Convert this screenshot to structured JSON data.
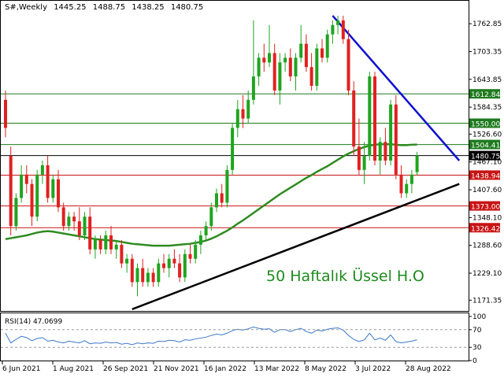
{
  "header": {
    "symbol": "S#,Weekly",
    "open": "1445.25",
    "high": "1488.75",
    "low": "1438.25",
    "close": "1480.75"
  },
  "rsi_label": "RSI(14) 47.0699",
  "annotation": "50 Haftalık Üssel H.O",
  "colors": {
    "bull": "#1fa41f",
    "bear": "#e02020",
    "ema": "#2e8b20",
    "trend_down": "#1010d0",
    "trend_up": "#000000",
    "support_level": "#c81414",
    "resistance_level": "#1f7a1f",
    "rsi_line": "#3c78c8",
    "annotation": "#1f8a1f"
  },
  "chart_data": [
    {
      "type": "candlestick",
      "timeframe": "Weekly",
      "x_tick_labels": [
        "6 Jun 2021",
        "1 Aug 2021",
        "26 Sep 2021",
        "21 Nov 2021",
        "16 Jan 2022",
        "13 Mar 2022",
        "8 May 2022",
        "3 Jul 2022",
        "28 Aug 2022"
      ],
      "y_tick_labels": [
        "1762.85",
        "1703.35",
        "1643.85",
        "1584.35",
        "1526.60",
        "1467.10",
        "1407.60",
        "1348.10",
        "1288.60",
        "1229.10",
        "1171.35"
      ],
      "ylim": [
        1150,
        1790
      ],
      "candles": [
        {
          "o": 1600,
          "h": 1620,
          "l": 1520,
          "c": 1540
        },
        {
          "o": 1480,
          "h": 1500,
          "l": 1310,
          "c": 1330
        },
        {
          "o": 1330,
          "h": 1400,
          "l": 1320,
          "c": 1390
        },
        {
          "o": 1390,
          "h": 1460,
          "l": 1380,
          "c": 1440
        },
        {
          "o": 1440,
          "h": 1460,
          "l": 1400,
          "c": 1420
        },
        {
          "o": 1420,
          "h": 1430,
          "l": 1330,
          "c": 1350
        },
        {
          "o": 1350,
          "h": 1450,
          "l": 1340,
          "c": 1440
        },
        {
          "o": 1440,
          "h": 1470,
          "l": 1420,
          "c": 1460
        },
        {
          "o": 1460,
          "h": 1480,
          "l": 1380,
          "c": 1390
        },
        {
          "o": 1390,
          "h": 1440,
          "l": 1380,
          "c": 1430
        },
        {
          "o": 1430,
          "h": 1450,
          "l": 1360,
          "c": 1370
        },
        {
          "o": 1370,
          "h": 1380,
          "l": 1320,
          "c": 1330
        },
        {
          "o": 1330,
          "h": 1360,
          "l": 1320,
          "c": 1350
        },
        {
          "o": 1350,
          "h": 1360,
          "l": 1320,
          "c": 1340
        },
        {
          "o": 1340,
          "h": 1370,
          "l": 1300,
          "c": 1310
        },
        {
          "o": 1310,
          "h": 1360,
          "l": 1300,
          "c": 1350
        },
        {
          "o": 1350,
          "h": 1370,
          "l": 1270,
          "c": 1280
        },
        {
          "o": 1280,
          "h": 1310,
          "l": 1260,
          "c": 1300
        },
        {
          "o": 1300,
          "h": 1310,
          "l": 1270,
          "c": 1280
        },
        {
          "o": 1280,
          "h": 1320,
          "l": 1270,
          "c": 1310
        },
        {
          "o": 1310,
          "h": 1330,
          "l": 1270,
          "c": 1280
        },
        {
          "o": 1280,
          "h": 1300,
          "l": 1260,
          "c": 1290
        },
        {
          "o": 1290,
          "h": 1300,
          "l": 1240,
          "c": 1250
        },
        {
          "o": 1250,
          "h": 1270,
          "l": 1230,
          "c": 1260
        },
        {
          "o": 1260,
          "h": 1270,
          "l": 1200,
          "c": 1210
        },
        {
          "o": 1210,
          "h": 1250,
          "l": 1180,
          "c": 1240
        },
        {
          "o": 1240,
          "h": 1260,
          "l": 1200,
          "c": 1210
        },
        {
          "o": 1210,
          "h": 1240,
          "l": 1200,
          "c": 1230
        },
        {
          "o": 1230,
          "h": 1240,
          "l": 1200,
          "c": 1210
        },
        {
          "o": 1210,
          "h": 1260,
          "l": 1200,
          "c": 1250
        },
        {
          "o": 1250,
          "h": 1270,
          "l": 1230,
          "c": 1240
        },
        {
          "o": 1240,
          "h": 1270,
          "l": 1220,
          "c": 1260
        },
        {
          "o": 1260,
          "h": 1280,
          "l": 1240,
          "c": 1250
        },
        {
          "o": 1250,
          "h": 1270,
          "l": 1210,
          "c": 1220
        },
        {
          "o": 1220,
          "h": 1280,
          "l": 1210,
          "c": 1270
        },
        {
          "o": 1270,
          "h": 1290,
          "l": 1250,
          "c": 1260
        },
        {
          "o": 1260,
          "h": 1300,
          "l": 1250,
          "c": 1290
        },
        {
          "o": 1290,
          "h": 1320,
          "l": 1270,
          "c": 1310
        },
        {
          "o": 1310,
          "h": 1340,
          "l": 1300,
          "c": 1330
        },
        {
          "o": 1330,
          "h": 1380,
          "l": 1320,
          "c": 1370
        },
        {
          "o": 1370,
          "h": 1410,
          "l": 1360,
          "c": 1400
        },
        {
          "o": 1400,
          "h": 1420,
          "l": 1370,
          "c": 1380
        },
        {
          "o": 1380,
          "h": 1460,
          "l": 1370,
          "c": 1450
        },
        {
          "o": 1450,
          "h": 1550,
          "l": 1440,
          "c": 1540
        },
        {
          "o": 1540,
          "h": 1600,
          "l": 1520,
          "c": 1580
        },
        {
          "o": 1580,
          "h": 1610,
          "l": 1540,
          "c": 1560
        },
        {
          "o": 1560,
          "h": 1620,
          "l": 1550,
          "c": 1600
        },
        {
          "o": 1600,
          "h": 1770,
          "l": 1590,
          "c": 1650
        },
        {
          "o": 1650,
          "h": 1700,
          "l": 1630,
          "c": 1690
        },
        {
          "o": 1690,
          "h": 1720,
          "l": 1660,
          "c": 1680
        },
        {
          "o": 1680,
          "h": 1760,
          "l": 1670,
          "c": 1700
        },
        {
          "o": 1700,
          "h": 1720,
          "l": 1610,
          "c": 1620
        },
        {
          "o": 1620,
          "h": 1700,
          "l": 1590,
          "c": 1680
        },
        {
          "o": 1680,
          "h": 1700,
          "l": 1660,
          "c": 1690
        },
        {
          "o": 1690,
          "h": 1710,
          "l": 1640,
          "c": 1650
        },
        {
          "o": 1650,
          "h": 1700,
          "l": 1620,
          "c": 1690
        },
        {
          "o": 1690,
          "h": 1760,
          "l": 1680,
          "c": 1720
        },
        {
          "o": 1720,
          "h": 1740,
          "l": 1660,
          "c": 1670
        },
        {
          "o": 1670,
          "h": 1700,
          "l": 1620,
          "c": 1630
        },
        {
          "o": 1630,
          "h": 1720,
          "l": 1620,
          "c": 1710
        },
        {
          "o": 1710,
          "h": 1730,
          "l": 1680,
          "c": 1690
        },
        {
          "o": 1690,
          "h": 1750,
          "l": 1680,
          "c": 1740
        },
        {
          "o": 1740,
          "h": 1770,
          "l": 1720,
          "c": 1760
        },
        {
          "o": 1760,
          "h": 1780,
          "l": 1740,
          "c": 1770
        },
        {
          "o": 1770,
          "h": 1780,
          "l": 1720,
          "c": 1730
        },
        {
          "o": 1730,
          "h": 1750,
          "l": 1610,
          "c": 1620
        },
        {
          "o": 1620,
          "h": 1640,
          "l": 1480,
          "c": 1500
        },
        {
          "o": 1500,
          "h": 1560,
          "l": 1440,
          "c": 1450
        },
        {
          "o": 1450,
          "h": 1510,
          "l": 1420,
          "c": 1480
        },
        {
          "o": 1480,
          "h": 1660,
          "l": 1470,
          "c": 1650
        },
        {
          "o": 1650,
          "h": 1660,
          "l": 1460,
          "c": 1470
        },
        {
          "o": 1470,
          "h": 1520,
          "l": 1440,
          "c": 1510
        },
        {
          "o": 1510,
          "h": 1540,
          "l": 1460,
          "c": 1470
        },
        {
          "o": 1470,
          "h": 1600,
          "l": 1460,
          "c": 1590
        },
        {
          "o": 1590,
          "h": 1610,
          "l": 1430,
          "c": 1440
        },
        {
          "o": 1440,
          "h": 1460,
          "l": 1390,
          "c": 1400
        },
        {
          "o": 1400,
          "h": 1430,
          "l": 1390,
          "c": 1420
        },
        {
          "o": 1420,
          "h": 1450,
          "l": 1400,
          "c": 1440
        },
        {
          "o": 1445.25,
          "h": 1488.75,
          "l": 1438.25,
          "c": 1480.75
        }
      ],
      "ema50": [
        1302,
        1304,
        1306,
        1308,
        1310,
        1313,
        1316,
        1318,
        1319,
        1318,
        1316,
        1314,
        1312,
        1310,
        1308,
        1306,
        1304,
        1302,
        1301,
        1300,
        1299,
        1298,
        1296,
        1294,
        1292,
        1291,
        1290,
        1289,
        1288,
        1288,
        1288,
        1288,
        1289,
        1290,
        1291,
        1292,
        1294,
        1296,
        1299,
        1303,
        1308,
        1314,
        1320,
        1327,
        1335,
        1342,
        1350,
        1358,
        1366,
        1374,
        1382,
        1390,
        1398,
        1405,
        1412,
        1419,
        1426,
        1433,
        1439,
        1446,
        1452,
        1458,
        1465,
        1472,
        1479,
        1485,
        1490,
        1495,
        1499,
        1502,
        1504,
        1505,
        1505,
        1505,
        1504,
        1503,
        1503,
        1504,
        1504.41
      ],
      "horizontal_levels": [
        {
          "value": 1612.84,
          "label": "1612.84",
          "kind": "resistance"
        },
        {
          "value": 1550.0,
          "label": "1550.00",
          "kind": "resistance"
        },
        {
          "value": 1504.41,
          "label": "1504.41",
          "kind": "resistance"
        },
        {
          "value": 1480.75,
          "label": "1480.75",
          "kind": "current"
        },
        {
          "value": 1438.94,
          "label": "1438.94",
          "kind": "support"
        },
        {
          "value": 1373.0,
          "label": "1373.00",
          "kind": "support"
        },
        {
          "value": 1326.42,
          "label": "1326.42",
          "kind": "support"
        }
      ],
      "trendlines": [
        {
          "name": "downtrend",
          "from": {
            "i": 62,
            "v": 1780
          },
          "to": {
            "i": 86,
            "v": 1470
          }
        },
        {
          "name": "uptrend",
          "from": {
            "i": 24,
            "v": 1152
          },
          "to": {
            "i": 86,
            "v": 1420
          }
        }
      ]
    },
    {
      "type": "line",
      "indicator": "RSI(14)",
      "y_tick_labels": [
        "100",
        "70",
        "30",
        "0"
      ],
      "ylim": [
        0,
        100
      ],
      "values": [
        62,
        40,
        48,
        55,
        52,
        45,
        50,
        52,
        44,
        46,
        42,
        40,
        44,
        42,
        40,
        45,
        38,
        40,
        39,
        42,
        40,
        41,
        37,
        39,
        36,
        40,
        38,
        40,
        39,
        44,
        43,
        46,
        45,
        42,
        47,
        46,
        49,
        51,
        53,
        57,
        60,
        58,
        62,
        68,
        71,
        69,
        72,
        76,
        73,
        71,
        72,
        64,
        70,
        70,
        66,
        70,
        73,
        66,
        62,
        69,
        67,
        71,
        73,
        74,
        69,
        57,
        48,
        43,
        47,
        62,
        47,
        51,
        46,
        58,
        43,
        40,
        42,
        44,
        47.07
      ]
    }
  ]
}
